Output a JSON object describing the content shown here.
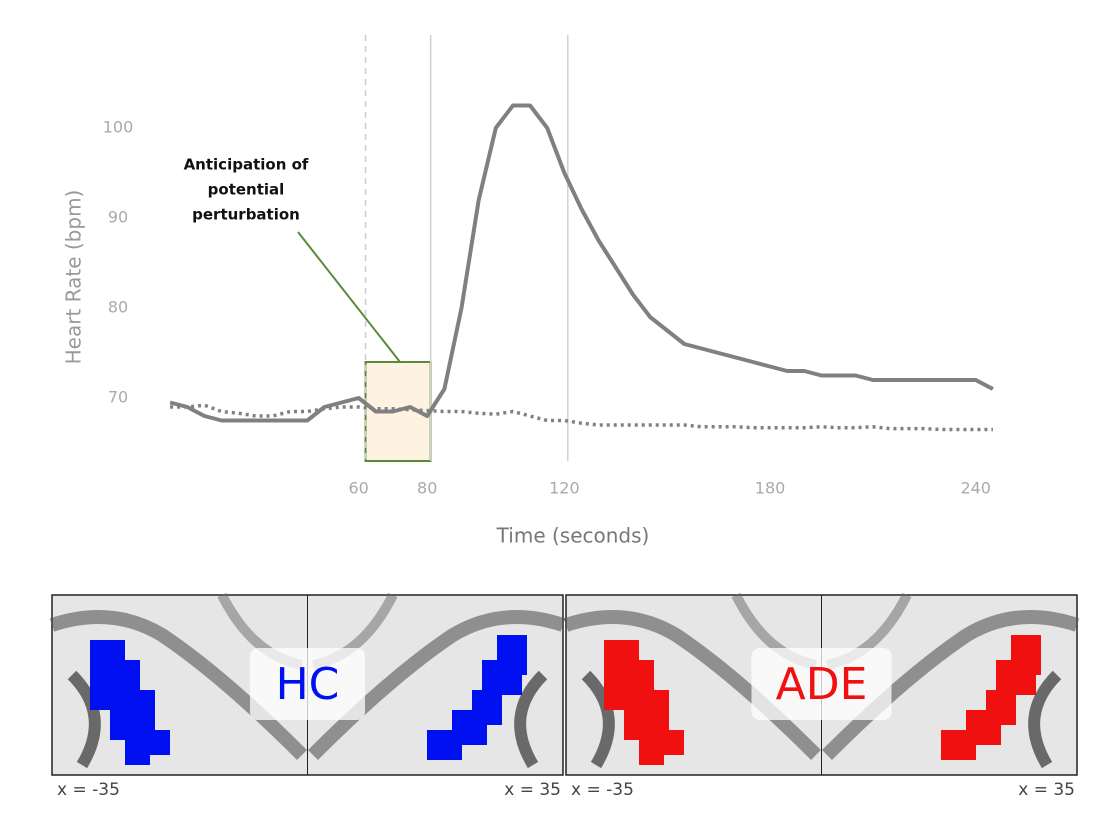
{
  "chart_data": {
    "type": "line",
    "ylabel": "Heart Rate  (bpm)",
    "xlabel": "Time (seconds)",
    "annotation": [
      "Anticipation of",
      "potential",
      "perturbation"
    ],
    "x": [
      5,
      10,
      15,
      20,
      25,
      30,
      35,
      40,
      45,
      50,
      55,
      60,
      65,
      70,
      75,
      80,
      85,
      90,
      95,
      100,
      105,
      110,
      115,
      120,
      125,
      130,
      135,
      140,
      145,
      150,
      155,
      160,
      165,
      170,
      175,
      180,
      185,
      190,
      195,
      200,
      205,
      210,
      215,
      220,
      225,
      230,
      235,
      240,
      245
    ],
    "series": [
      {
        "color": "#808080",
        "style": "solid",
        "values": [
          69.5,
          69,
          68,
          67.5,
          67.5,
          67.5,
          67.5,
          67.5,
          67.5,
          69,
          69.5,
          70,
          68.5,
          68.5,
          69,
          68,
          71,
          80,
          92,
          100,
          102.5,
          102.5,
          100,
          95,
          91,
          87.5,
          84.5,
          81.5,
          79,
          77.5,
          76,
          75.5,
          75,
          74.5,
          74,
          73.5,
          73,
          73,
          72.5,
          72.5,
          72.5,
          72,
          72,
          72,
          72,
          72,
          72,
          72,
          71
        ]
      },
      {
        "color": "#808080",
        "style": "dotted",
        "values": [
          69,
          69,
          69.2,
          68.5,
          68.3,
          68,
          68,
          68.5,
          68.5,
          68.8,
          69,
          69,
          68.8,
          68.8,
          68.7,
          68.6,
          68.5,
          68.5,
          68.3,
          68.2,
          68.5,
          68,
          67.5,
          67.5,
          67.2,
          67,
          67,
          67,
          67,
          67,
          67,
          66.8,
          66.8,
          66.8,
          66.7,
          66.7,
          66.7,
          66.7,
          66.8,
          66.7,
          66.7,
          66.8,
          66.6,
          66.6,
          66.6,
          66.5,
          66.5,
          66.5,
          66.5
        ]
      }
    ],
    "reference_lines": [
      {
        "x": 62,
        "style": "dashed"
      },
      {
        "x": 81,
        "style": "solid"
      },
      {
        "x": 121,
        "style": "solid"
      }
    ],
    "highlight": {
      "x": [
        62,
        81
      ],
      "y": [
        63,
        74
      ],
      "color": "#5a8a3a"
    },
    "xlim": [
      0,
      250
    ],
    "ylim": [
      63,
      106
    ],
    "xticks": [
      60,
      80,
      120,
      180,
      240
    ],
    "yticks": [
      70,
      80,
      90,
      100
    ]
  },
  "panels": [
    {
      "label": "HC",
      "color": "#0010f0",
      "left": "x = -35",
      "right": "x = 35"
    },
    {
      "label": "ADE",
      "color": "#f01010",
      "left": "x = -35",
      "right": "x = 35"
    }
  ]
}
